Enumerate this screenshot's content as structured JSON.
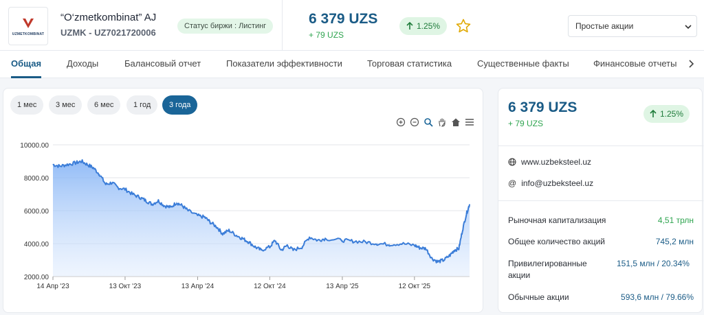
{
  "company": {
    "logo_text": "UZMETKOMBINAT",
    "name": "“O‘zmetkombinat” AJ",
    "ticker": "UZMK - UZ7021720006",
    "exchange_status": "Статус биржи : Листинг"
  },
  "quote": {
    "price": "6 379 UZS",
    "change": "+ 79 UZS",
    "change_pct": "1.25%"
  },
  "share_type_select": {
    "value": "Простые акции"
  },
  "tabs": [
    {
      "label": "Общая",
      "active": true
    },
    {
      "label": "Доходы"
    },
    {
      "label": "Балансовый отчет"
    },
    {
      "label": "Показатели эффективности"
    },
    {
      "label": "Торговая статистика"
    },
    {
      "label": "Существенные факты"
    },
    {
      "label": "Финансовые отчеты"
    }
  ],
  "ranges": [
    {
      "label": "1 мес"
    },
    {
      "label": "3 мес"
    },
    {
      "label": "6 мес"
    },
    {
      "label": "1 год"
    },
    {
      "label": "3 года",
      "active": true
    }
  ],
  "chart_data": {
    "type": "area",
    "title": "",
    "xlabel": "",
    "ylabel": "",
    "ylim": [
      2000,
      10000
    ],
    "yticks": [
      "10000.00",
      "8000.00",
      "6000.00",
      "4000.00",
      "2000.00"
    ],
    "xticks": [
      "14 Апр '23",
      "13 Окт '23",
      "13 Апр '24",
      "12 Окт '24",
      "13 Апр '25",
      "12 Окт '25"
    ],
    "grid": true,
    "color": "#3b7dd8",
    "series": [
      {
        "x": [
          "2023-04-14",
          "2023-05-01",
          "2023-05-20",
          "2023-06-10",
          "2023-06-25",
          "2023-07-10",
          "2023-07-25",
          "2023-08-10",
          "2023-08-25",
          "2023-09-10",
          "2023-09-25",
          "2023-10-13",
          "2023-11-01",
          "2023-11-20",
          "2023-12-05",
          "2023-12-20",
          "2024-01-05",
          "2024-01-20",
          "2024-02-05",
          "2024-02-20",
          "2024-03-05",
          "2024-03-20",
          "2024-04-13",
          "2024-05-01",
          "2024-05-15",
          "2024-06-01",
          "2024-06-15",
          "2024-07-01",
          "2024-07-20",
          "2024-08-05",
          "2024-08-20",
          "2024-09-05",
          "2024-09-20",
          "2024-10-12",
          "2024-10-25",
          "2024-11-10",
          "2024-11-25",
          "2024-12-10",
          "2025-01-01",
          "2025-01-20",
          "2025-02-10",
          "2025-03-01",
          "2025-04-13",
          "2025-05-10",
          "2025-06-10",
          "2025-07-10",
          "2025-08-10",
          "2025-09-10",
          "2025-10-12",
          "2025-10-25",
          "2025-11-10",
          "2025-11-25",
          "2025-12-10",
          "2025-12-25",
          "2026-01-10",
          "2026-01-20",
          "2026-02-01",
          "2026-02-10",
          "2026-02-20",
          "2026-02-28"
        ],
        "y": [
          8800,
          8700,
          8800,
          8900,
          9000,
          8800,
          8600,
          8200,
          7600,
          7700,
          7400,
          7300,
          7000,
          6800,
          6600,
          6400,
          6600,
          6300,
          6200,
          6500,
          6300,
          6000,
          5700,
          5600,
          5300,
          5000,
          4600,
          4800,
          4500,
          4300,
          4100,
          3800,
          3600,
          3800,
          4200,
          3600,
          3900,
          3600,
          3800,
          4400,
          4200,
          4300,
          4200,
          4150,
          4100,
          4000,
          3950,
          4000,
          3900,
          3750,
          3700,
          3100,
          2900,
          3000,
          3300,
          3600,
          3700,
          4800,
          5800,
          6379
        ]
      }
    ]
  },
  "info": {
    "website": "www.uzbeksteel.uz",
    "email": "info@uzbeksteel.uz",
    "rows": [
      {
        "label": "Рыночная капитализация",
        "value": "4,51 трлн"
      },
      {
        "label": "Общее количество акций",
        "value": "745,2 млн"
      },
      {
        "label": "Привилегированные акции",
        "value": "151,5 млн / 20.34%"
      },
      {
        "label": "Обычные акции",
        "value": "593,6 млн / 79.66%"
      }
    ]
  }
}
